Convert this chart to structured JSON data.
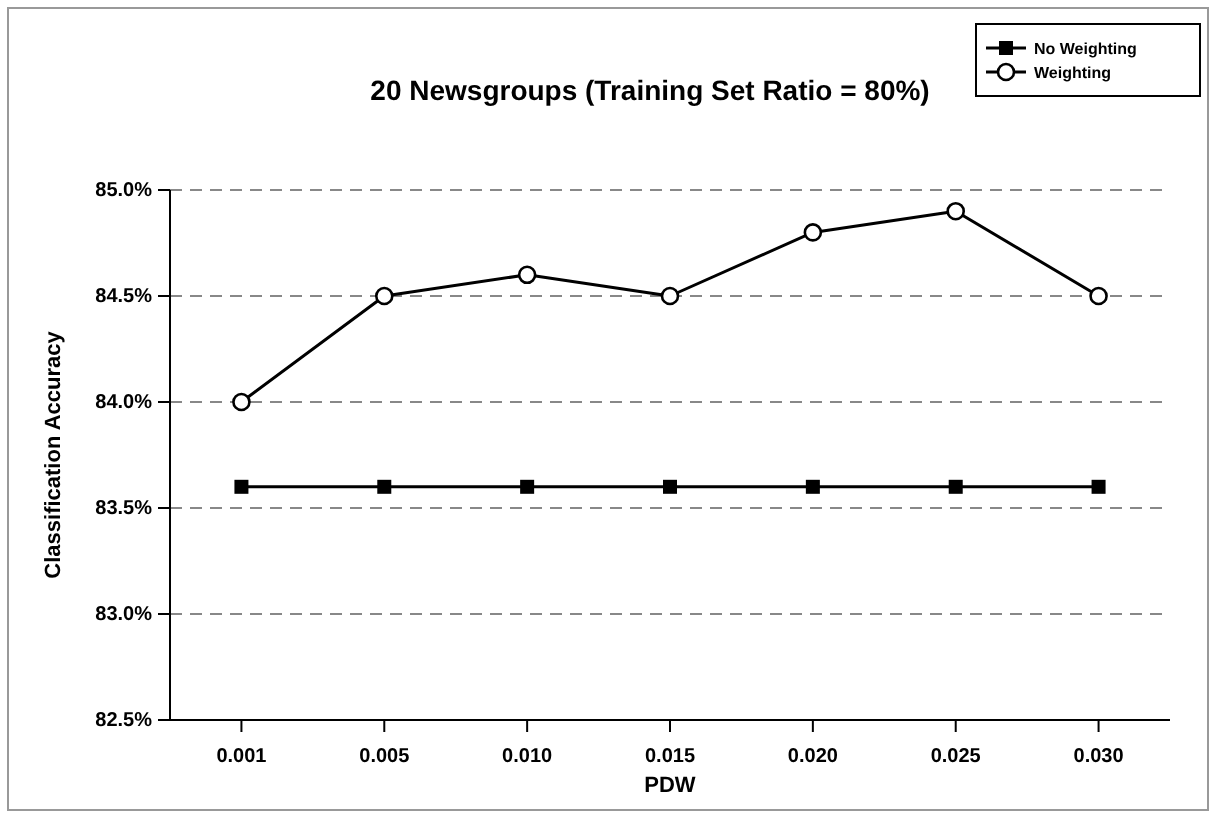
{
  "chart_data": {
    "type": "line",
    "title": "20 Newsgroups (Training Set Ratio = 80%)",
    "xlabel": "PDW",
    "ylabel": "Classification Accuracy",
    "categories": [
      "0.001",
      "0.005",
      "0.010",
      "0.015",
      "0.020",
      "0.025",
      "0.030"
    ],
    "series": [
      {
        "name": "No Weighting",
        "color": "#000000",
        "marker": "square",
        "values": [
          83.6,
          83.6,
          83.6,
          83.6,
          83.6,
          83.6,
          83.6
        ]
      },
      {
        "name": "Weighting",
        "color": "#000000",
        "marker": "circle",
        "values": [
          84.0,
          84.5,
          84.6,
          84.5,
          84.8,
          84.9,
          84.5
        ]
      }
    ],
    "ylim": [
      82.5,
      85.0
    ],
    "yticks": [
      {
        "value": 82.5,
        "label": "82.5%"
      },
      {
        "value": 83.0,
        "label": "83.0%"
      },
      {
        "value": 83.5,
        "label": "83.5%"
      },
      {
        "value": 84.0,
        "label": "84.0%"
      },
      {
        "value": 84.5,
        "label": "84.5%"
      },
      {
        "value": 85.0,
        "label": "85.0%"
      }
    ],
    "grid": "y",
    "legend": "top right",
    "line_style": "solid"
  }
}
